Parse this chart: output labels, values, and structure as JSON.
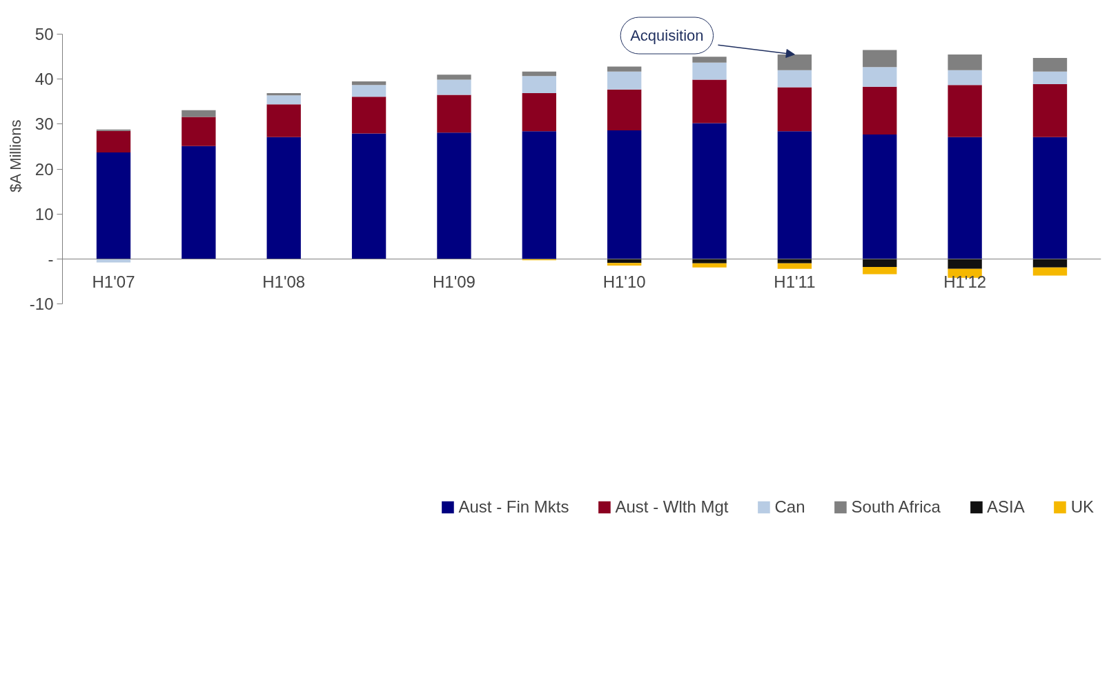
{
  "chart_data": {
    "type": "bar",
    "stacked": true,
    "ylabel": "$A Millions",
    "categories": [
      "H1'07",
      null,
      "H1'08",
      null,
      "H1'09",
      null,
      "H1'10",
      null,
      "H1'11",
      null,
      "H1'12",
      null
    ],
    "series": [
      {
        "name": "Aust - Fin Mkts",
        "color": "#000080",
        "values": [
          23.7,
          25.1,
          27.1,
          27.9,
          28.1,
          28.4,
          28.6,
          30.2,
          28.4,
          27.7,
          27.1,
          27.1
        ]
      },
      {
        "name": "Aust - Wlth Mgt",
        "color": "#8b0020",
        "values": [
          4.8,
          6.5,
          7.3,
          8.2,
          8.4,
          8.5,
          9.1,
          9.7,
          9.8,
          10.6,
          11.6,
          11.8
        ]
      },
      {
        "name": "Can",
        "color": "#b8cce4",
        "values": [
          -0.8,
          null,
          2.0,
          2.6,
          3.4,
          3.8,
          4.0,
          3.8,
          3.8,
          4.4,
          3.3,
          2.8
        ]
      },
      {
        "name": "South Africa",
        "color": "#808080",
        "values": [
          0.3,
          1.5,
          0.5,
          0.8,
          1.1,
          1.0,
          1.1,
          1.3,
          3.5,
          3.8,
          3.5,
          3.0
        ]
      },
      {
        "name": "ASIA",
        "color": "#111111",
        "values": [
          null,
          null,
          null,
          null,
          null,
          null,
          -0.9,
          -1.0,
          -1.0,
          -1.8,
          -2.2,
          -1.9
        ]
      },
      {
        "name": "UK",
        "color": "#f5b800",
        "values": [
          null,
          null,
          null,
          null,
          null,
          -0.3,
          -0.6,
          -0.9,
          -1.2,
          -1.6,
          -2.0,
          -1.8
        ]
      }
    ],
    "ylim": [
      -10,
      50
    ],
    "yticks": [
      {
        "value": -10,
        "label": "-10"
      },
      {
        "value": 0,
        "label": "-"
      },
      10,
      20,
      30,
      40,
      50
    ],
    "grid": false,
    "legend": "bottom",
    "annotations": [
      {
        "text": "Acquisition",
        "x": "H1'11",
        "y": 45.5
      }
    ]
  }
}
